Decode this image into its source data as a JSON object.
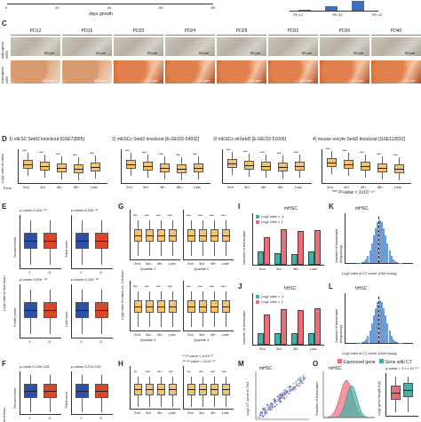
{
  "top": {
    "x_axis_label": "days growth",
    "x_ticks": [
      "0",
      "20",
      "40",
      "60",
      "80"
    ],
    "bar_categories": [
      "PD 12",
      "PD 32",
      "PD 42"
    ],
    "bar_values_fraction": [
      0.05,
      0.45,
      0.95
    ],
    "bar_color": "#3a6fc1"
  },
  "panel_c": {
    "label": "C",
    "columns": [
      "PD12",
      "PD16",
      "PD20",
      "PD24",
      "PD28",
      "PD32",
      "PD36",
      "PD40"
    ],
    "row1_label": "adipogenic ORO",
    "row2_label": "osteogenic ARS",
    "scale_bar_row1": "50 µm",
    "scale_bar_row2": "500 µm"
  },
  "panel_d": {
    "label": "D",
    "titles": [
      "1) mESC Setd2 knockout [GSE72855]",
      "2) mESCs Setd2 knockout [E-GEOD-54932]",
      "3) mESCs shSetd2 [E-GEOD-51006]",
      "4) mouse oocyte Setd2 knockout [GSE112832]"
    ],
    "ylabel": "Log2 ratio of ratios",
    "x_ticks": [
      "2nd",
      "3rd",
      "4th",
      "5th",
      "Last"
    ],
    "exon_label": "Exon",
    "stars": "***",
    "footnote": "*** P-value < 1x10⁻¹⁰",
    "box_color": "#f5c46a"
  },
  "panel_e": {
    "label": "E",
    "pvalues": [
      "p-value=2.02e⁻¹⁰",
      "p-value=6.53e⁻¹¹",
      "p-value=3.83e⁻⁰⁹",
      "p-value=1.15e⁻⁰⁹"
    ],
    "ylabels": [
      "Second exon",
      "Third exon",
      "Fourth exon",
      "Last exon"
    ],
    "ylabel": "Log2 ratio to first exon",
    "x_ticks": [
      "Y",
      "O"
    ],
    "young_color": "#2d4fa6",
    "old_color": "#d9472b"
  },
  "panel_f": {
    "label": "F",
    "pvalues": [
      "p-value=1.29e-126",
      "p-value=3.27e-145"
    ],
    "ylabels": [
      "Second exon",
      "Third exon"
    ],
    "x_ticks": [
      "Y",
      "O"
    ],
    "ylabel_partial": "ond exon"
  },
  "panel_g": {
    "label": "G",
    "ylabel": "Log2 ratio of ratios vs. 1st exon",
    "quartiles": [
      "Quartile 1",
      "Quartile 2",
      "Quartile 3",
      "Quartile 4"
    ],
    "x_ticks": [
      "2nd",
      "3rd",
      "4th",
      "Last"
    ],
    "stars": "***"
  },
  "panel_h": {
    "label": "H",
    "legend": [
      "** P-value < 1x10⁻⁵",
      "*** P-value < 1x10⁻¹⁰"
    ],
    "stars_left": [
      "**",
      "***",
      "***",
      "***"
    ],
    "x_ticks": [
      "2nd",
      "3rd",
      "4th",
      "Last"
    ]
  },
  "panel_i": {
    "label": "I",
    "title": "mHSC",
    "ylabel": "Number of transcripts",
    "legend": [
      "Log2 ratio < -1",
      "Log2 ratio > 1"
    ],
    "x_ticks": [
      "2nd",
      "3rd",
      "4th",
      "Last"
    ],
    "lt_values": [
      0.35,
      0.3,
      0.28,
      0.35
    ],
    "gt_values": [
      0.75,
      0.95,
      0.9,
      0.92
    ],
    "lt_color": "#3fb3a8",
    "gt_color": "#ee6b78"
  },
  "panel_j": {
    "label": "J",
    "title": "hHSC",
    "ylabel": "Number of transcripts",
    "legend": [
      "Log2 ratio < -1",
      "Log2 ratio > 1"
    ],
    "x_ticks": [
      "2nd",
      "3rd",
      "4th",
      "Last"
    ],
    "lt_values": [
      0.3,
      0.32,
      0.3,
      0.3
    ],
    "gt_values": [
      0.8,
      0.95,
      0.92,
      0.98
    ]
  },
  "panel_k": {
    "label": "K",
    "title": "mHSC",
    "xlabel": "Log2 ratio of CT score (Old/Young)",
    "ylabel": "Number of transcripts (frequency)",
    "hist_color": "#6d9bd6"
  },
  "panel_l": {
    "label": "L",
    "title": "hHSC",
    "xlabel": "Log2 ratio of CT score (Old/Young)",
    "ylabel": "Number of transcripts (frequency)"
  },
  "panel_m": {
    "label": "M",
    "title": "mHSC",
    "ylabel": "Log2 CT score in Old",
    "dot_color": "#3a64b8"
  },
  "panel_o": {
    "label": "O",
    "title": "mHSC",
    "legend": [
      "Expressed gene",
      "Gene with CT"
    ],
    "ylabel": "Fraction of transcripts",
    "ylabel2": "Log2 gene length (bp)",
    "pvalue": "p-value < 3.3 x 10⁻¹⁰",
    "colors": [
      "#ee6b78",
      "#3fb3a8"
    ]
  }
}
